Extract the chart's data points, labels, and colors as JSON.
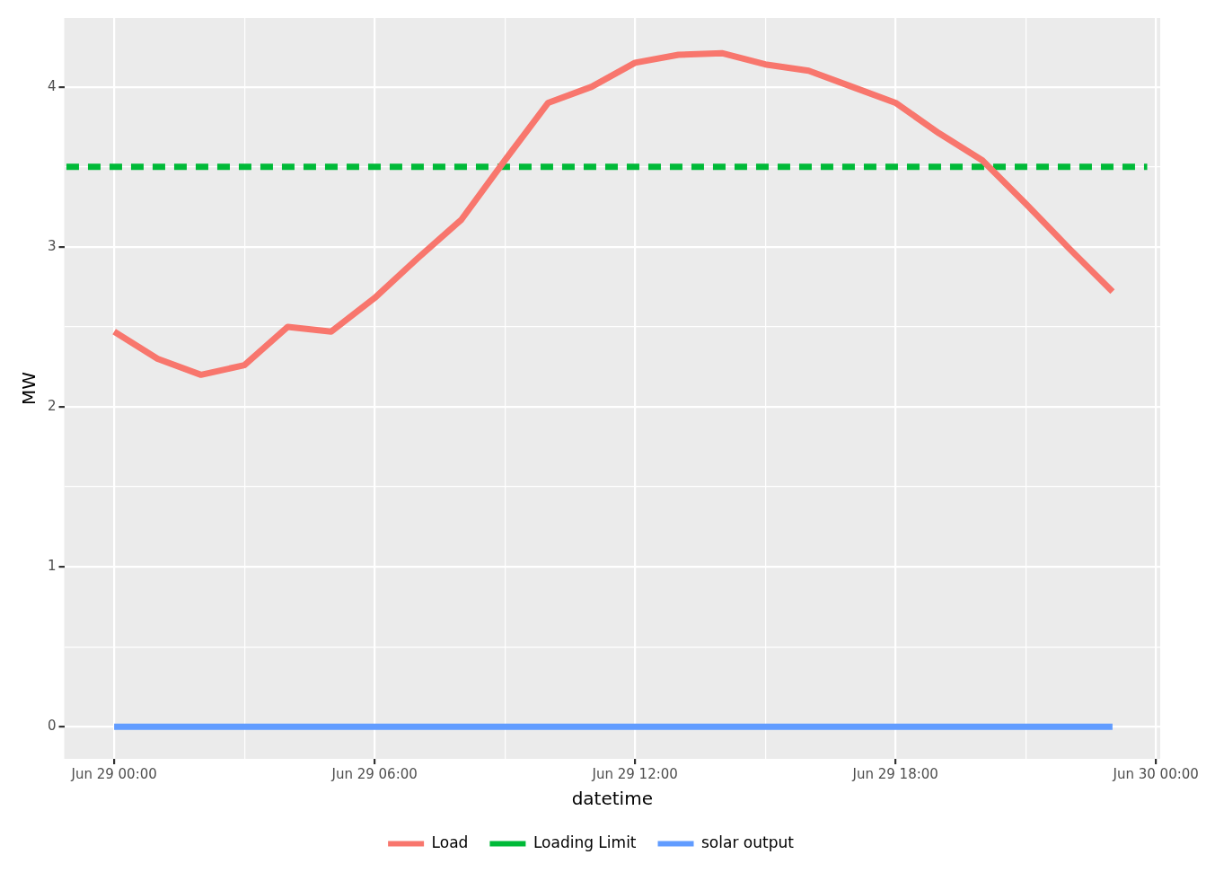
{
  "chart_data": {
    "type": "line",
    "xlabel": "datetime",
    "ylabel": "MW",
    "x": [
      "--06-29T00:00",
      "--06-29T01:00",
      "--06-29T02:00",
      "--06-29T03:00",
      "--06-29T04:00",
      "--06-29T05:00",
      "--06-29T06:00",
      "--06-29T07:00",
      "--06-29T08:00",
      "--06-29T09:00",
      "--06-29T10:00",
      "--06-29T11:00",
      "--06-29T12:00",
      "--06-29T13:00",
      "--06-29T14:00",
      "--06-29T15:00",
      "--06-29T16:00",
      "--06-29T17:00",
      "--06-29T18:00",
      "--06-29T19:00",
      "--06-29T20:00",
      "--06-29T21:00",
      "--06-29T22:00",
      "--06-29T23:00"
    ],
    "series": [
      {
        "name": "Load",
        "color": "#f8766d",
        "values": [
          2.47,
          2.3,
          2.2,
          2.26,
          2.5,
          2.47,
          2.68,
          2.93,
          3.17,
          3.54,
          3.9,
          4.0,
          4.15,
          4.2,
          4.21,
          4.14,
          4.1,
          4.0,
          3.9,
          3.71,
          3.54,
          3.27,
          2.99,
          2.72
        ]
      },
      {
        "name": "Loading Limit",
        "color": "#00ba38",
        "type": "line",
        "line_style": "dashed",
        "x": [
          "--06-28T22:54",
          "--06-29T23:48"
        ],
        "values": [
          3.5,
          3.5
        ]
      },
      {
        "name": "solar output",
        "color": "#619cff",
        "values": [
          0,
          0,
          0,
          0,
          0,
          0,
          0,
          0,
          0,
          0,
          0,
          0,
          0,
          0,
          0,
          0,
          0,
          0,
          0,
          0,
          0,
          0,
          0,
          0
        ]
      }
    ],
    "xlim": [
      "--06-28T22:51",
      "--06-30T00:06"
    ],
    "xticks": [
      {
        "value": "--06-29T00:00",
        "label": "Jun 29 00:00"
      },
      {
        "value": "--06-29T03:00",
        "label": null
      },
      {
        "value": "--06-29T06:00",
        "label": "Jun 29 06:00"
      },
      {
        "value": "--06-29T09:00",
        "label": null
      },
      {
        "value": "--06-29T12:00",
        "label": "Jun 29 12:00"
      },
      {
        "value": "--06-29T15:00",
        "label": null
      },
      {
        "value": "--06-29T18:00",
        "label": "Jun 29 18:00"
      },
      {
        "value": "--06-29T21:00",
        "label": null
      },
      {
        "value": "--06-30T00:00",
        "label": "Jun 30 00:00"
      }
    ],
    "ylim": [
      -0.2,
      4.43
    ],
    "yticks": [
      0,
      {
        "value": 0.5,
        "label": null
      },
      1,
      {
        "value": 1.5,
        "label": null
      },
      2,
      {
        "value": 2.5,
        "label": null
      },
      3,
      {
        "value": 3.5,
        "label": null
      },
      4
    ],
    "grid": true,
    "legend": "bottom",
    "marker": "none",
    "line_style": "solid"
  }
}
